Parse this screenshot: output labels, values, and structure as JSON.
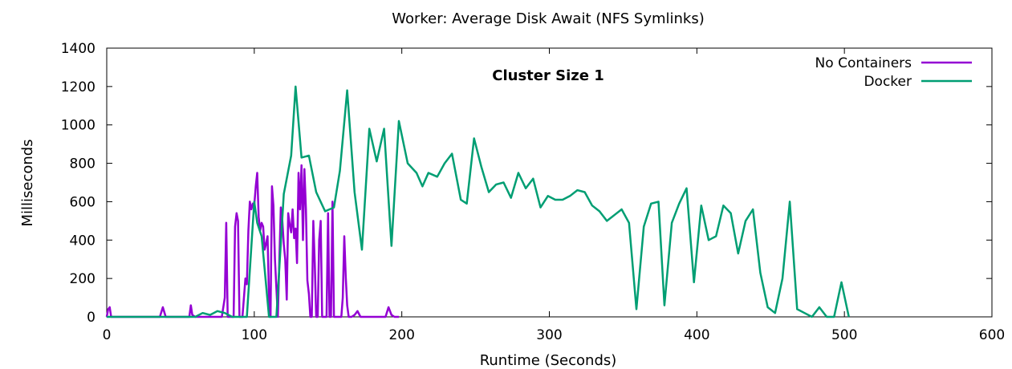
{
  "chart_data": {
    "type": "line",
    "title": "Worker: Average Disk Await (NFS Symlinks)",
    "annotation": "Cluster Size 1",
    "xlabel": "Runtime (Seconds)",
    "ylabel": "Milliseconds",
    "xlim": [
      0,
      600
    ],
    "ylim": [
      0,
      1400
    ],
    "xticks": [
      0,
      100,
      200,
      300,
      400,
      500,
      600
    ],
    "yticks": [
      0,
      200,
      400,
      600,
      800,
      1000,
      1200,
      1400
    ],
    "grid": false,
    "legend_position": "top-right",
    "series": [
      {
        "name": "No Containers",
        "color": "#9400d3",
        "x": [
          0,
          1,
          2,
          3,
          10,
          20,
          30,
          36,
          38,
          40,
          42,
          50,
          56,
          57,
          58,
          60,
          62,
          70,
          78,
          80,
          81,
          82,
          84,
          86,
          87,
          88,
          89,
          90,
          92,
          94,
          95,
          96,
          97,
          98,
          99,
          100,
          101,
          102,
          103,
          104,
          105,
          106,
          107,
          108,
          109,
          110,
          111,
          112,
          113,
          114,
          115,
          116,
          117,
          118,
          119,
          120,
          121,
          122,
          123,
          124,
          125,
          126,
          127,
          128,
          129,
          130,
          131,
          132,
          133,
          134,
          135,
          136,
          137,
          138,
          139,
          140,
          141,
          142,
          143,
          144,
          145,
          146,
          147,
          148,
          149,
          150,
          151,
          152,
          153,
          154,
          155,
          156,
          157,
          158,
          159,
          160,
          161,
          162,
          163,
          164,
          166,
          168,
          170,
          172,
          174,
          176,
          178,
          180,
          185,
          189,
          191,
          193,
          195,
          198
        ],
        "y": [
          0,
          40,
          50,
          0,
          0,
          0,
          0,
          0,
          50,
          0,
          0,
          0,
          0,
          60,
          10,
          0,
          0,
          0,
          0,
          100,
          490,
          0,
          0,
          0,
          470,
          540,
          500,
          0,
          0,
          200,
          170,
          450,
          600,
          560,
          590,
          580,
          680,
          750,
          520,
          450,
          490,
          470,
          350,
          380,
          420,
          100,
          0,
          680,
          580,
          300,
          150,
          0,
          300,
          570,
          500,
          380,
          300,
          90,
          540,
          480,
          440,
          560,
          410,
          460,
          280,
          750,
          560,
          790,
          400,
          770,
          560,
          190,
          120,
          0,
          0,
          500,
          280,
          0,
          0,
          400,
          500,
          0,
          0,
          0,
          0,
          540,
          0,
          0,
          600,
          0,
          0,
          0,
          0,
          0,
          0,
          100,
          420,
          210,
          60,
          0,
          0,
          10,
          30,
          0,
          0,
          0,
          0,
          0,
          0,
          0,
          50,
          10,
          0,
          0
        ]
      },
      {
        "name": "Docker",
        "color": "#009e73",
        "x": [
          0,
          10,
          20,
          30,
          40,
          50,
          55,
          60,
          65,
          70,
          75,
          80,
          85,
          90,
          95,
          100,
          102,
          105,
          110,
          115,
          120,
          125,
          128,
          132,
          137,
          142,
          148,
          154,
          158,
          163,
          168,
          173,
          178,
          183,
          188,
          193,
          198,
          204,
          210,
          214,
          218,
          224,
          229,
          234,
          240,
          244,
          249,
          254,
          259,
          264,
          269,
          274,
          279,
          284,
          289,
          294,
          299,
          304,
          309,
          314,
          319,
          324,
          329,
          334,
          339,
          344,
          349,
          354,
          359,
          364,
          369,
          374,
          378,
          383,
          388,
          393,
          398,
          403,
          408,
          413,
          418,
          423,
          428,
          433,
          438,
          443,
          448,
          453,
          458,
          463,
          468,
          473,
          478,
          483,
          488,
          493,
          498,
          503
        ],
        "y": [
          0,
          0,
          0,
          0,
          0,
          0,
          0,
          0,
          20,
          10,
          30,
          20,
          0,
          0,
          0,
          600,
          490,
          420,
          0,
          0,
          640,
          840,
          1200,
          830,
          840,
          650,
          550,
          570,
          760,
          1180,
          650,
          350,
          980,
          810,
          980,
          370,
          1020,
          800,
          750,
          680,
          750,
          730,
          800,
          850,
          610,
          590,
          930,
          780,
          650,
          690,
          700,
          620,
          750,
          670,
          720,
          570,
          630,
          610,
          610,
          630,
          660,
          650,
          580,
          550,
          500,
          530,
          560,
          490,
          40,
          470,
          590,
          600,
          60,
          490,
          590,
          670,
          180,
          580,
          400,
          420,
          580,
          540,
          330,
          500,
          560,
          230,
          50,
          20,
          200,
          600,
          40,
          20,
          0,
          50,
          0,
          0,
          180,
          0
        ]
      }
    ]
  }
}
